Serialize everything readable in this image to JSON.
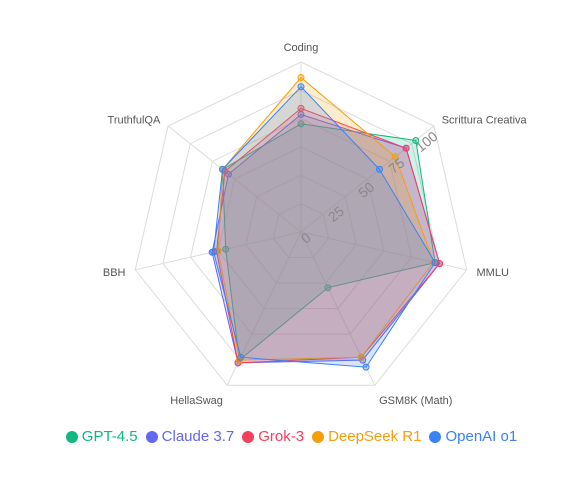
{
  "chart_data": {
    "type": "radar",
    "axes": [
      "Coding",
      "Scrittura Creativa",
      "MMLU",
      "GSM8K (Math)",
      "HellaSwag",
      "BBH",
      "TruthfulQA"
    ],
    "scale_ticks": [
      "0",
      "25",
      "50",
      "75",
      "100"
    ],
    "rmin": 0,
    "rmax": 110,
    "grid": true,
    "legend_position": "bottom",
    "series": [
      {
        "name": "GPT-4.5",
        "color": "#10b981",
        "values": [
          70,
          95,
          89,
          40,
          92,
          50,
          65
        ]
      },
      {
        "name": "Claude 3.7",
        "color": "#6366f1",
        "values": [
          76,
          87,
          92,
          92,
          94,
          59,
          60
        ]
      },
      {
        "name": "Grok-3",
        "color": "#f43f5e",
        "values": [
          80,
          87,
          92,
          90,
          94,
          56,
          63
        ]
      },
      {
        "name": "DeepSeek R1",
        "color": "#f59e0b",
        "values": [
          100,
          78,
          88,
          90,
          92,
          55,
          65
        ]
      },
      {
        "name": "OpenAI o1",
        "color": "#3b82f6",
        "values": [
          94,
          65,
          89,
          97,
          90,
          58,
          65
        ]
      }
    ]
  }
}
